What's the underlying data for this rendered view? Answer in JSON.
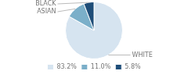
{
  "chart_data": {
    "type": "pie",
    "categories": [
      "WHITE",
      "ASIAN",
      "BLACK"
    ],
    "values": [
      83.2,
      11.0,
      5.8
    ],
    "value_labels": [
      "83.2%",
      "11.0%",
      "5.8%"
    ],
    "colors": [
      "#d6e4f0",
      "#7bafc9",
      "#1f4e79"
    ],
    "legend": "bottom"
  }
}
